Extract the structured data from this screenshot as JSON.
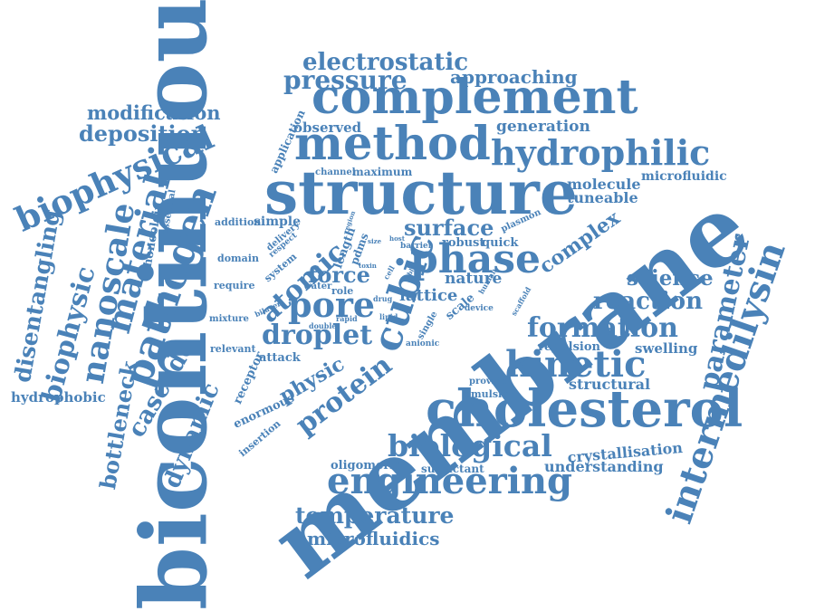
{
  "theme": {
    "word_color": "#4a82b8",
    "background": "#ffffff"
  },
  "words": [
    "bicontinuous",
    "membrane",
    "structure",
    "complement",
    "method",
    "cholesterol",
    "hydrophilic",
    "intermedilysin",
    "phase",
    "kinetic",
    "engineering",
    "biological",
    "biophysical",
    "formation",
    "pressure",
    "electrostatic",
    "approaching",
    "modification",
    "deposition",
    "pathogen",
    "material",
    "nanoscale",
    "biophysic",
    "disentangling",
    "bottleneck",
    "cascade",
    "dynamic",
    "cubic",
    "atomic",
    "pore",
    "droplet",
    "protein",
    "physic",
    "surface",
    "reaction",
    "science",
    "parameter",
    "temperature",
    "microfluidics",
    "crystallisation",
    "understanding",
    "structural",
    "swelling",
    "repulsion",
    "molecule",
    "microfluidic",
    "tuneable",
    "generation",
    "observed",
    "application",
    "force",
    "lattice",
    "complex",
    "hydrophobic",
    "relevant",
    "attack",
    "receptor",
    "enormous",
    "insertion",
    "oligomeric",
    "surfactant",
    "emulsion",
    "provide",
    "anionic",
    "single",
    "device",
    "scaffold",
    "human",
    "nature",
    "robust",
    "quick",
    "plasmon",
    "barrier",
    "cell",
    "able",
    "drug",
    "lipid",
    "rapid",
    "double",
    "mixture",
    "bilayer",
    "role",
    "water",
    "require",
    "domain",
    "delivery",
    "respect",
    "system",
    "addition",
    "simple",
    "essential",
    "monoolein",
    "channel",
    "maximum",
    "length",
    "region",
    "pdms",
    "toxin",
    "size",
    "host",
    "scale"
  ]
}
